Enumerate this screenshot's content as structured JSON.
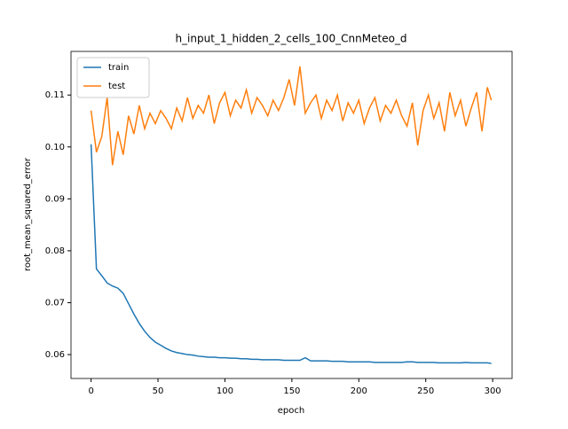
{
  "chart_data": {
    "type": "line",
    "title": "h_input_1_hidden_2_cells_100_CnnMeteo_d",
    "x_label": "epoch",
    "y_label": "root_mean_squared_error",
    "x": [
      0,
      4,
      8,
      12,
      16,
      20,
      24,
      28,
      32,
      36,
      40,
      44,
      48,
      52,
      56,
      60,
      64,
      68,
      72,
      76,
      80,
      84,
      88,
      92,
      96,
      100,
      104,
      108,
      112,
      116,
      120,
      124,
      128,
      132,
      136,
      140,
      144,
      148,
      152,
      156,
      160,
      164,
      168,
      172,
      176,
      180,
      184,
      188,
      192,
      196,
      200,
      204,
      208,
      212,
      216,
      220,
      224,
      228,
      232,
      236,
      240,
      244,
      248,
      252,
      256,
      260,
      264,
      268,
      272,
      276,
      280,
      284,
      288,
      292,
      296,
      299
    ],
    "series": [
      {
        "name": "train",
        "color": "#1f77b4",
        "values": [
          0.1005,
          0.0765,
          0.0752,
          0.0738,
          0.0732,
          0.0728,
          0.0718,
          0.0698,
          0.0678,
          0.066,
          0.0645,
          0.0633,
          0.0624,
          0.0618,
          0.0612,
          0.0607,
          0.0604,
          0.0602,
          0.06,
          0.0599,
          0.0597,
          0.0596,
          0.0595,
          0.0595,
          0.0594,
          0.0594,
          0.0593,
          0.0593,
          0.0592,
          0.0592,
          0.0591,
          0.0591,
          0.059,
          0.059,
          0.059,
          0.059,
          0.0589,
          0.0589,
          0.0589,
          0.0589,
          0.0594,
          0.0588,
          0.0588,
          0.0588,
          0.0588,
          0.0587,
          0.0587,
          0.0587,
          0.0586,
          0.0586,
          0.0586,
          0.0586,
          0.0586,
          0.0585,
          0.0585,
          0.0585,
          0.0585,
          0.0585,
          0.0585,
          0.0586,
          0.0586,
          0.0585,
          0.0585,
          0.0585,
          0.0585,
          0.0584,
          0.0584,
          0.0584,
          0.0584,
          0.0584,
          0.0585,
          0.0584,
          0.0584,
          0.0584,
          0.0584,
          0.0583
        ]
      },
      {
        "name": "test",
        "color": "#ff7f0e",
        "values": [
          0.107,
          0.099,
          0.102,
          0.1095,
          0.0965,
          0.103,
          0.0985,
          0.106,
          0.1025,
          0.108,
          0.1035,
          0.1065,
          0.1045,
          0.107,
          0.1055,
          0.1035,
          0.1075,
          0.105,
          0.1095,
          0.1055,
          0.108,
          0.1065,
          0.11,
          0.1045,
          0.1085,
          0.1105,
          0.106,
          0.109,
          0.1075,
          0.111,
          0.1065,
          0.1095,
          0.108,
          0.106,
          0.109,
          0.107,
          0.1095,
          0.113,
          0.108,
          0.1155,
          0.1065,
          0.1085,
          0.11,
          0.1055,
          0.109,
          0.107,
          0.11,
          0.105,
          0.1085,
          0.1065,
          0.109,
          0.1045,
          0.1075,
          0.1095,
          0.105,
          0.108,
          0.1065,
          0.109,
          0.106,
          0.104,
          0.1085,
          0.1003,
          0.107,
          0.11,
          0.1055,
          0.1085,
          0.103,
          0.1105,
          0.106,
          0.109,
          0.104,
          0.1075,
          0.1105,
          0.103,
          0.1115,
          0.109
        ]
      }
    ],
    "xlim": [
      -15,
      314.5
    ],
    "ylim": [
      0.0554,
      0.1184
    ],
    "xticks": [
      0,
      50,
      100,
      150,
      200,
      250,
      300
    ],
    "yticks": [
      0.06,
      0.07,
      0.08,
      0.09,
      {
        "value": 0.1,
        "label": "0.10"
      },
      0.11
    ],
    "legend": "upper left"
  }
}
